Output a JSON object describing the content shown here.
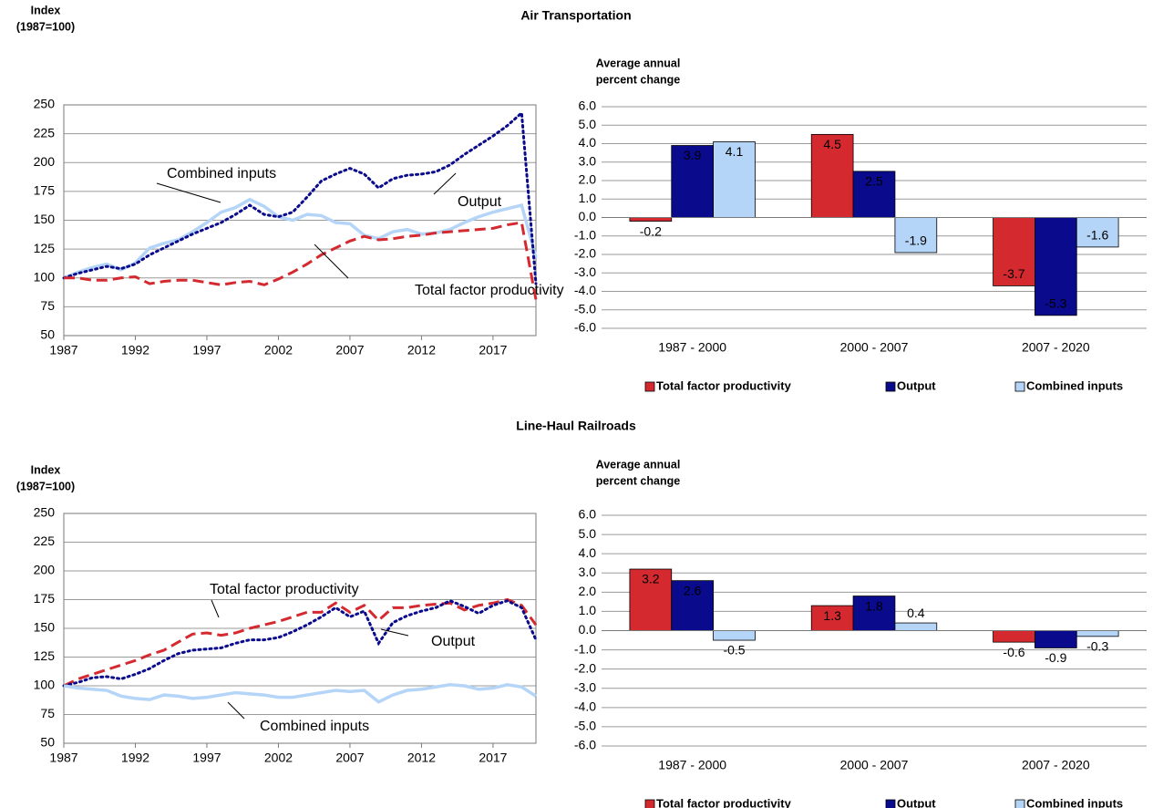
{
  "headings": [
    "Air Transportation",
    "Line-Haul Railroads"
  ],
  "chart_data": [
    {
      "type": "line",
      "y_label_lines": [
        "Index",
        "(1987=100)"
      ],
      "x": [
        1987,
        1988,
        1989,
        1990,
        1991,
        1992,
        1993,
        1994,
        1995,
        1996,
        1997,
        1998,
        1999,
        2000,
        2001,
        2002,
        2003,
        2004,
        2005,
        2006,
        2007,
        2008,
        2009,
        2010,
        2011,
        2012,
        2013,
        2014,
        2015,
        2016,
        2017,
        2018,
        2019,
        2020
      ],
      "xlim": [
        1987,
        2020
      ],
      "xticks": [
        1987,
        1992,
        1997,
        2002,
        2007,
        2012,
        2017
      ],
      "ylim": [
        50,
        250
      ],
      "yticks": [
        50,
        75,
        100,
        125,
        150,
        175,
        200,
        225,
        250
      ],
      "grid": true,
      "series": [
        {
          "name": "Combined inputs",
          "color": "#b4d5f7",
          "line_style": "solid",
          "values": [
            100,
            105,
            109,
            112,
            107,
            113,
            126,
            130,
            133,
            140,
            148,
            157,
            161,
            168,
            162,
            153,
            150,
            155,
            154,
            148,
            147,
            137,
            134,
            140,
            142,
            138,
            139,
            142,
            148,
            153,
            157,
            160,
            163,
            118
          ]
        },
        {
          "name": "Output",
          "color": "#0a0a8c",
          "line_style": "dot",
          "values": [
            100,
            104,
            107,
            110,
            108,
            112,
            120,
            126,
            132,
            138,
            143,
            148,
            155,
            163,
            155,
            153,
            157,
            170,
            184,
            190,
            195,
            190,
            178,
            186,
            189,
            190,
            192,
            198,
            207,
            215,
            223,
            232,
            243,
            95
          ]
        },
        {
          "name": "Total factor productivity",
          "color": "#d42a2f",
          "line_style": "dash",
          "values": [
            100,
            100,
            98,
            98,
            100,
            101,
            95,
            97,
            98,
            98,
            96,
            94,
            96,
            97,
            94,
            99,
            105,
            112,
            120,
            126,
            132,
            136,
            133,
            134,
            136,
            137,
            139,
            140,
            141,
            142,
            143,
            146,
            148,
            81
          ]
        }
      ]
    },
    {
      "type": "bar",
      "y_label_lines": [
        "Average annual",
        "percent change"
      ],
      "categories": [
        "1987 - 2000",
        "2000 - 2007",
        "2007 - 2020"
      ],
      "ylim": [
        -6,
        6
      ],
      "yticks": [
        {
          "value": -6,
          "label": "-6.0"
        },
        {
          "value": -5,
          "label": "-5.0"
        },
        {
          "value": -4,
          "label": "-4.0"
        },
        {
          "value": -3,
          "label": "-3.0"
        },
        {
          "value": -2,
          "label": "-2.0"
        },
        {
          "value": -1,
          "label": "-1.0"
        },
        {
          "value": 0,
          "label": "0.0"
        },
        {
          "value": 1,
          "label": "1.0"
        },
        {
          "value": 2,
          "label": "2.0"
        },
        {
          "value": 3,
          "label": "3.0"
        },
        {
          "value": 4,
          "label": "4.0"
        },
        {
          "value": 5,
          "label": "5.0"
        },
        {
          "value": 6,
          "label": "6.0"
        }
      ],
      "grid": true,
      "series": [
        {
          "name": "Total factor productivity",
          "color": "#d42a2f",
          "values": [
            -0.2,
            4.5,
            -3.7
          ]
        },
        {
          "name": "Output",
          "color": "#0a0a8c",
          "values": [
            3.9,
            2.5,
            -5.3
          ]
        },
        {
          "name": "Combined inputs",
          "color": "#b4d5f7",
          "values": [
            4.1,
            -1.9,
            -1.6
          ]
        }
      ]
    },
    {
      "type": "line",
      "y_label_lines": [
        "Index",
        "(1987=100)"
      ],
      "x": [
        1987,
        1988,
        1989,
        1990,
        1991,
        1992,
        1993,
        1994,
        1995,
        1996,
        1997,
        1998,
        1999,
        2000,
        2001,
        2002,
        2003,
        2004,
        2005,
        2006,
        2007,
        2008,
        2009,
        2010,
        2011,
        2012,
        2013,
        2014,
        2015,
        2016,
        2017,
        2018,
        2019,
        2020
      ],
      "xlim": [
        1987,
        2020
      ],
      "xticks": [
        1987,
        1992,
        1997,
        2002,
        2007,
        2012,
        2017
      ],
      "ylim": [
        50,
        250
      ],
      "yticks": [
        50,
        75,
        100,
        125,
        150,
        175,
        200,
        225,
        250
      ],
      "grid": true,
      "series": [
        {
          "name": "Total factor productivity",
          "color": "#d42a2f",
          "line_style": "dash",
          "values": [
            100,
            106,
            110,
            114,
            118,
            122,
            127,
            131,
            138,
            145,
            146,
            144,
            146,
            150,
            153,
            156,
            160,
            164,
            164,
            172,
            164,
            170,
            157,
            168,
            168,
            170,
            171,
            172,
            166,
            170,
            172,
            175,
            170,
            153
          ]
        },
        {
          "name": "Output",
          "color": "#0a0a8c",
          "line_style": "dot",
          "values": [
            100,
            103,
            107,
            108,
            106,
            110,
            115,
            122,
            128,
            131,
            132,
            133,
            137,
            140,
            140,
            142,
            147,
            153,
            160,
            168,
            160,
            165,
            137,
            155,
            161,
            165,
            168,
            174,
            169,
            163,
            170,
            174,
            168,
            140
          ]
        },
        {
          "name": "Combined inputs",
          "color": "#b4d5f7",
          "line_style": "solid",
          "values": [
            100,
            98,
            97,
            96,
            91,
            89,
            88,
            92,
            91,
            89,
            90,
            92,
            94,
            93,
            92,
            90,
            90,
            92,
            94,
            96,
            95,
            96,
            86,
            92,
            96,
            97,
            99,
            101,
            100,
            97,
            98,
            101,
            99,
            91
          ]
        }
      ]
    },
    {
      "type": "bar",
      "y_label_lines": [
        "Average annual",
        "percent change"
      ],
      "categories": [
        "1987 - 2000",
        "2000 - 2007",
        "2007 - 2020"
      ],
      "ylim": [
        -6,
        6
      ],
      "yticks": [
        {
          "value": -6,
          "label": "-6.0"
        },
        {
          "value": -5,
          "label": "-5.0"
        },
        {
          "value": -4,
          "label": "-4.0"
        },
        {
          "value": -3,
          "label": "-3.0"
        },
        {
          "value": -2,
          "label": "-2.0"
        },
        {
          "value": -1,
          "label": "-1.0"
        },
        {
          "value": 0,
          "label": "0.0"
        },
        {
          "value": 1,
          "label": "1.0"
        },
        {
          "value": 2,
          "label": "2.0"
        },
        {
          "value": 3,
          "label": "3.0"
        },
        {
          "value": 4,
          "label": "4.0"
        },
        {
          "value": 5,
          "label": "5.0"
        },
        {
          "value": 6,
          "label": "6.0"
        }
      ],
      "grid": true,
      "series": [
        {
          "name": "Total factor productivity",
          "color": "#d42a2f",
          "values": [
            3.2,
            1.3,
            -0.6
          ]
        },
        {
          "name": "Output",
          "color": "#0a0a8c",
          "values": [
            2.6,
            1.8,
            -0.9
          ]
        },
        {
          "name": "Combined inputs",
          "color": "#b4d5f7",
          "values": [
            -0.5,
            0.4,
            -0.3
          ]
        }
      ]
    }
  ]
}
